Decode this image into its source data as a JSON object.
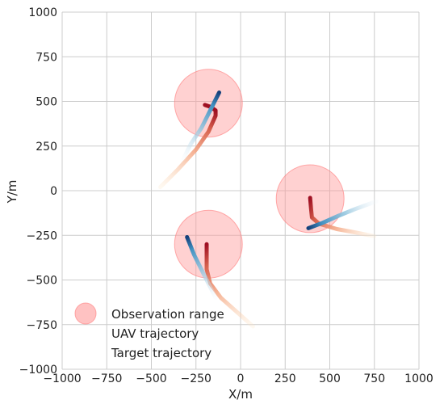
{
  "chart_data": {
    "type": "scatter",
    "title": "",
    "xlabel": "X/m",
    "ylabel": "Y/m",
    "xlim": [
      -1000,
      1000
    ],
    "ylim": [
      -1000,
      1000
    ],
    "xticks": [
      "−1000",
      "−750",
      "−500",
      "−250",
      "0",
      "250",
      "500",
      "750",
      "1000"
    ],
    "yticks": [
      "1000",
      "750",
      "500",
      "250",
      "0",
      "−250",
      "−500",
      "−750",
      "−1000"
    ],
    "grid": true,
    "legend_position": "bottom-left",
    "legend": [
      {
        "label": "Observation range",
        "kind": "circle",
        "color": "#ffb3b3"
      },
      {
        "label": "UAV trajectory",
        "kind": "gradient",
        "from": "#fde0bd",
        "to": "#b2182b"
      },
      {
        "label": "Target trajectory",
        "kind": "gradient",
        "from": "#d1e5f0",
        "to": "#2166ac"
      }
    ],
    "observation_ranges": [
      {
        "center": [
          -180,
          490
        ],
        "radius": 190
      },
      {
        "center": [
          390,
          -45
        ],
        "radius": 190
      },
      {
        "center": [
          -180,
          -300
        ],
        "radius": 190
      }
    ],
    "uav_trajectories": [
      {
        "points": [
          [
            -450,
            20
          ],
          [
            -350,
            120
          ],
          [
            -250,
            230
          ],
          [
            -180,
            330
          ],
          [
            -140,
            420
          ],
          [
            -140,
            450
          ],
          [
            -170,
            470
          ],
          [
            -200,
            480
          ]
        ]
      },
      {
        "points": [
          [
            750,
            -255
          ],
          [
            650,
            -235
          ],
          [
            540,
            -215
          ],
          [
            440,
            -185
          ],
          [
            400,
            -150
          ],
          [
            395,
            -100
          ],
          [
            390,
            -40
          ]
        ]
      },
      {
        "points": [
          [
            70,
            -760
          ],
          [
            -20,
            -680
          ],
          [
            -110,
            -600
          ],
          [
            -170,
            -520
          ],
          [
            -190,
            -440
          ],
          [
            -190,
            -360
          ],
          [
            -190,
            -300
          ]
        ]
      }
    ],
    "target_trajectories": [
      {
        "points": [
          [
            -320,
            180
          ],
          [
            -280,
            260
          ],
          [
            -220,
            350
          ],
          [
            -170,
            450
          ],
          [
            -120,
            550
          ]
        ]
      },
      {
        "points": [
          [
            760,
            -60
          ],
          [
            650,
            -100
          ],
          [
            550,
            -140
          ],
          [
            460,
            -180
          ],
          [
            380,
            -210
          ]
        ]
      },
      {
        "points": [
          [
            -140,
            -600
          ],
          [
            -180,
            -520
          ],
          [
            -220,
            -440
          ],
          [
            -260,
            -360
          ],
          [
            -300,
            -260
          ]
        ]
      }
    ]
  },
  "colors": {
    "grid": "#cccccc",
    "circle_fill": "#ff9999",
    "circle_stroke": "#ff7a7a"
  }
}
